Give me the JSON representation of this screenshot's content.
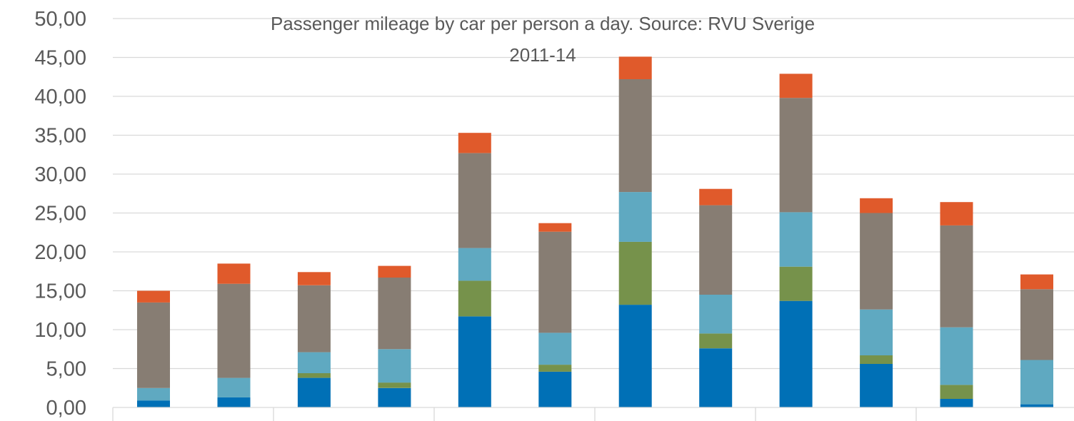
{
  "chart_data": {
    "type": "bar",
    "stacked": true,
    "title_lines": [
      "Passenger mileage by car per person a day. Source: RVU Sverige",
      "2011-14"
    ],
    "xlabel": "",
    "ylabel": "",
    "ylim": [
      0,
      50
    ],
    "y_ticks": [
      "0,00",
      "5,00",
      "10,00",
      "15,00",
      "20,00",
      "25,00",
      "30,00",
      "35,00",
      "40,00",
      "45,00",
      "50,00"
    ],
    "y_tick_values": [
      0,
      5,
      10,
      15,
      20,
      25,
      30,
      35,
      40,
      45,
      50
    ],
    "grid": true,
    "legend": "none",
    "category_groups": 6,
    "bars_per_group": 2,
    "categories": [
      "",
      "",
      "",
      "",
      "",
      "",
      "",
      "",
      "",
      "",
      "",
      ""
    ],
    "series": [
      {
        "color": "#0070B6",
        "values": [
          0.9,
          1.3,
          3.8,
          2.5,
          11.7,
          4.6,
          13.2,
          7.6,
          13.7,
          5.6,
          1.1,
          0.4
        ]
      },
      {
        "color": "#76924B",
        "values": [
          0.0,
          0.0,
          0.6,
          0.7,
          4.6,
          0.9,
          8.1,
          1.9,
          4.4,
          1.1,
          1.8,
          0.0
        ]
      },
      {
        "color": "#5FA9C1",
        "values": [
          1.6,
          2.5,
          2.7,
          4.3,
          4.2,
          4.1,
          6.4,
          5.0,
          7.0,
          5.9,
          7.4,
          5.7
        ]
      },
      {
        "color": "#877D73",
        "values": [
          11.0,
          12.1,
          8.6,
          9.2,
          12.2,
          13.0,
          14.5,
          11.5,
          14.7,
          12.4,
          13.1,
          9.1
        ]
      },
      {
        "color": "#E05A2B",
        "values": [
          1.5,
          2.6,
          1.7,
          1.5,
          2.6,
          1.1,
          2.9,
          2.1,
          3.1,
          1.9,
          3.0,
          1.9
        ]
      }
    ]
  }
}
